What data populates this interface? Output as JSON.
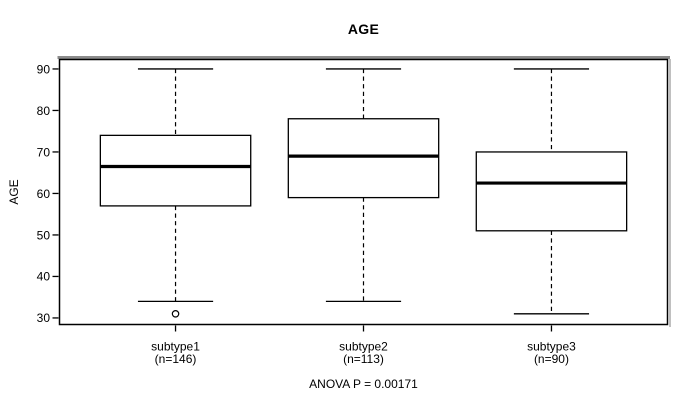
{
  "chart_data": {
    "type": "boxplot",
    "title": "AGE",
    "ylabel": "AGE",
    "xlabel": "",
    "annotation": "ANOVA P = 0.00171",
    "anova_p": 0.00171,
    "ylim": [
      28.3,
      92.4
    ],
    "y_ticks": [
      30,
      40,
      50,
      60,
      70,
      80,
      90
    ],
    "grid": false,
    "legend": "none",
    "categories": [
      "subtype1",
      "subtype2",
      "subtype3"
    ],
    "category_sublabels": [
      "(n=146)",
      "(n=113)",
      "(n=90)"
    ],
    "series": [
      {
        "name": "subtype1",
        "n": 146,
        "whisker_low": 34,
        "q1": 57,
        "median": 66.5,
        "q3": 74,
        "whisker_high": 90,
        "outliers": [
          31
        ]
      },
      {
        "name": "subtype2",
        "n": 113,
        "whisker_low": 34,
        "q1": 59,
        "median": 69,
        "q3": 78,
        "whisker_high": 90,
        "outliers": []
      },
      {
        "name": "subtype3",
        "n": 90,
        "whisker_low": 31,
        "q1": 51,
        "median": 62.5,
        "q3": 70,
        "whisker_high": 90,
        "outliers": []
      }
    ],
    "colors": {
      "line": "#000000",
      "box_fill": "#ffffff",
      "frame_shadow": "#8c8c8c",
      "background": "#ffffff"
    }
  }
}
